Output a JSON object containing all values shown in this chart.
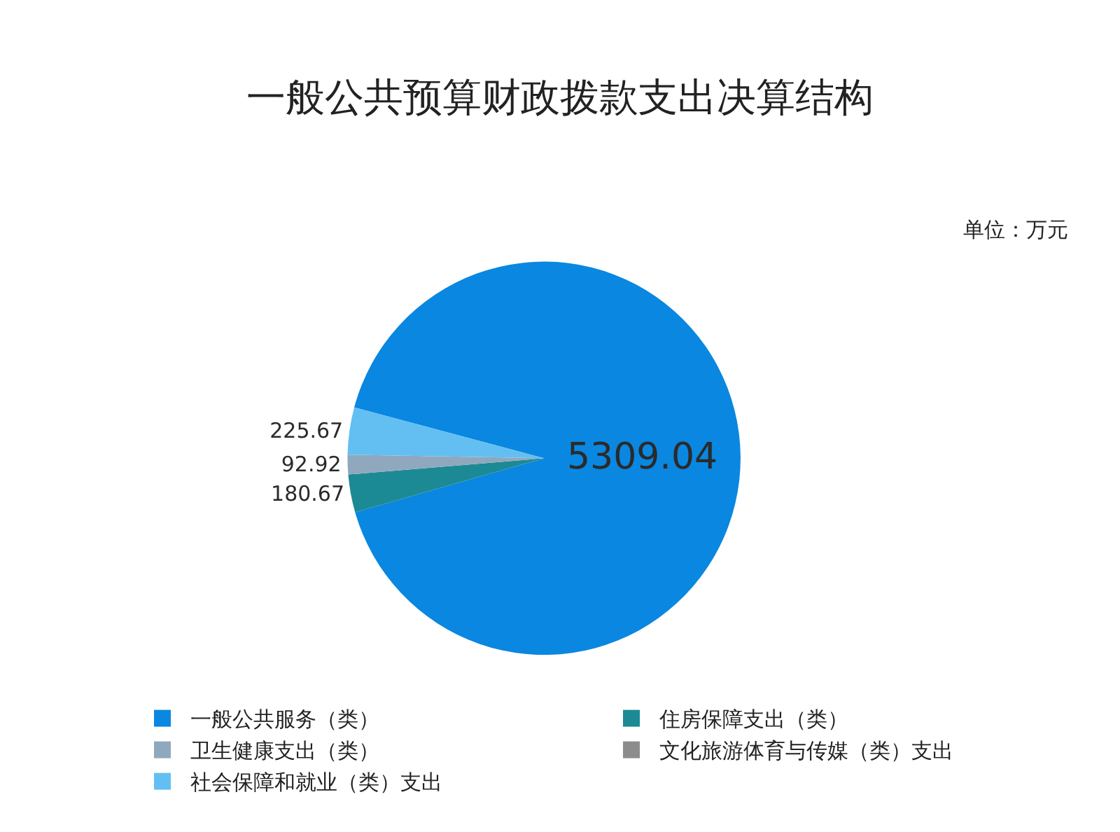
{
  "chart_data": {
    "type": "pie",
    "title": "一般公共预算财政拨款支出决算结构",
    "annotations": [
      "单位：万元"
    ],
    "categories": [
      "一般公共服务（类）",
      "住房保障支出（类）",
      "卫生健康支出（类）",
      "文化旅游体育与传媒（类）支出",
      "社会保障和就业（类）支出"
    ],
    "values": [
      5309.04,
      180.67,
      92.92,
      0,
      225.67
    ],
    "value_labels": [
      "5309.04",
      "180.67",
      "92.92",
      null,
      "225.67"
    ],
    "colors": [
      "#0a87e0",
      "#1c8a94",
      "#8fa8bd",
      "#8c8c8c",
      "#63bff2"
    ],
    "legend": "bottom"
  }
}
